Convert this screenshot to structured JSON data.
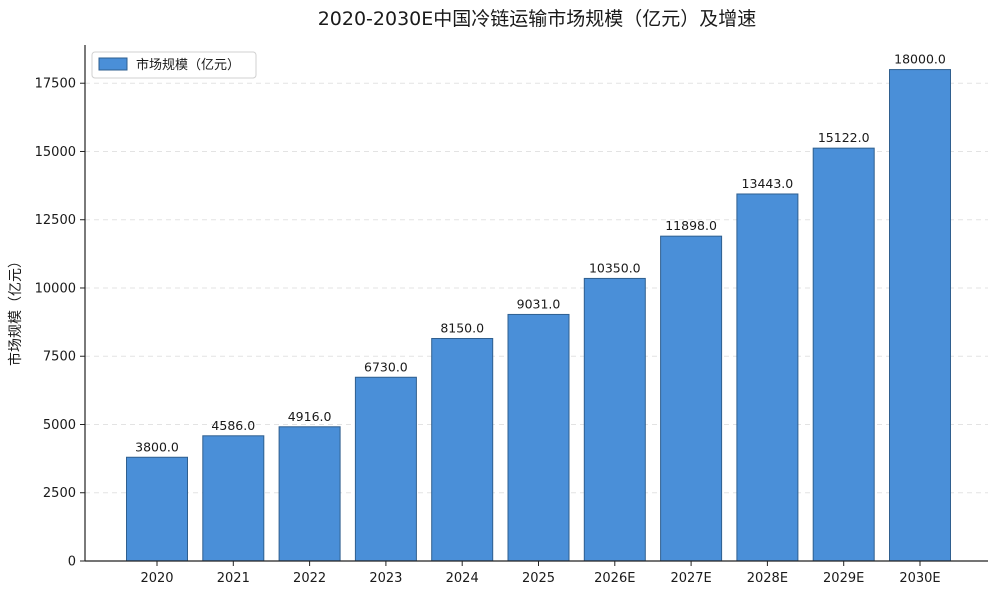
{
  "chart_data": {
    "type": "bar",
    "title": "2020-2030E中国冷链运输市场规模（亿元）及增速",
    "xlabel": "",
    "ylabel": "市场规模（亿元）",
    "categories": [
      "2020",
      "2021",
      "2022",
      "2023",
      "2024",
      "2025",
      "2026E",
      "2027E",
      "2028E",
      "2029E",
      "2030E"
    ],
    "series": [
      {
        "name": "市场规模（亿元）",
        "values": [
          3800.0,
          4586.0,
          4916.0,
          6730.0,
          8150.0,
          9031.0,
          10350.0,
          11898.0,
          13443.0,
          15122.0,
          18000.0
        ],
        "labels": [
          "3800.0",
          "4586.0",
          "4916.0",
          "6730.0",
          "8150.0",
          "9031.0",
          "10350.0",
          "11898.0",
          "13443.0",
          "15122.0",
          "18000.0"
        ],
        "color": "#4a8fd8"
      }
    ],
    "yticks": [
      0,
      2500,
      5000,
      7500,
      10000,
      12500,
      15000,
      17500
    ],
    "ylim": [
      0,
      18900
    ],
    "grid": true,
    "legend_position": "top-left",
    "colors": {
      "bar_fill": "#4a8fd8",
      "bar_edge": "#2f5f8f",
      "grid": "#e3e3e3",
      "axis": "#222222"
    }
  }
}
